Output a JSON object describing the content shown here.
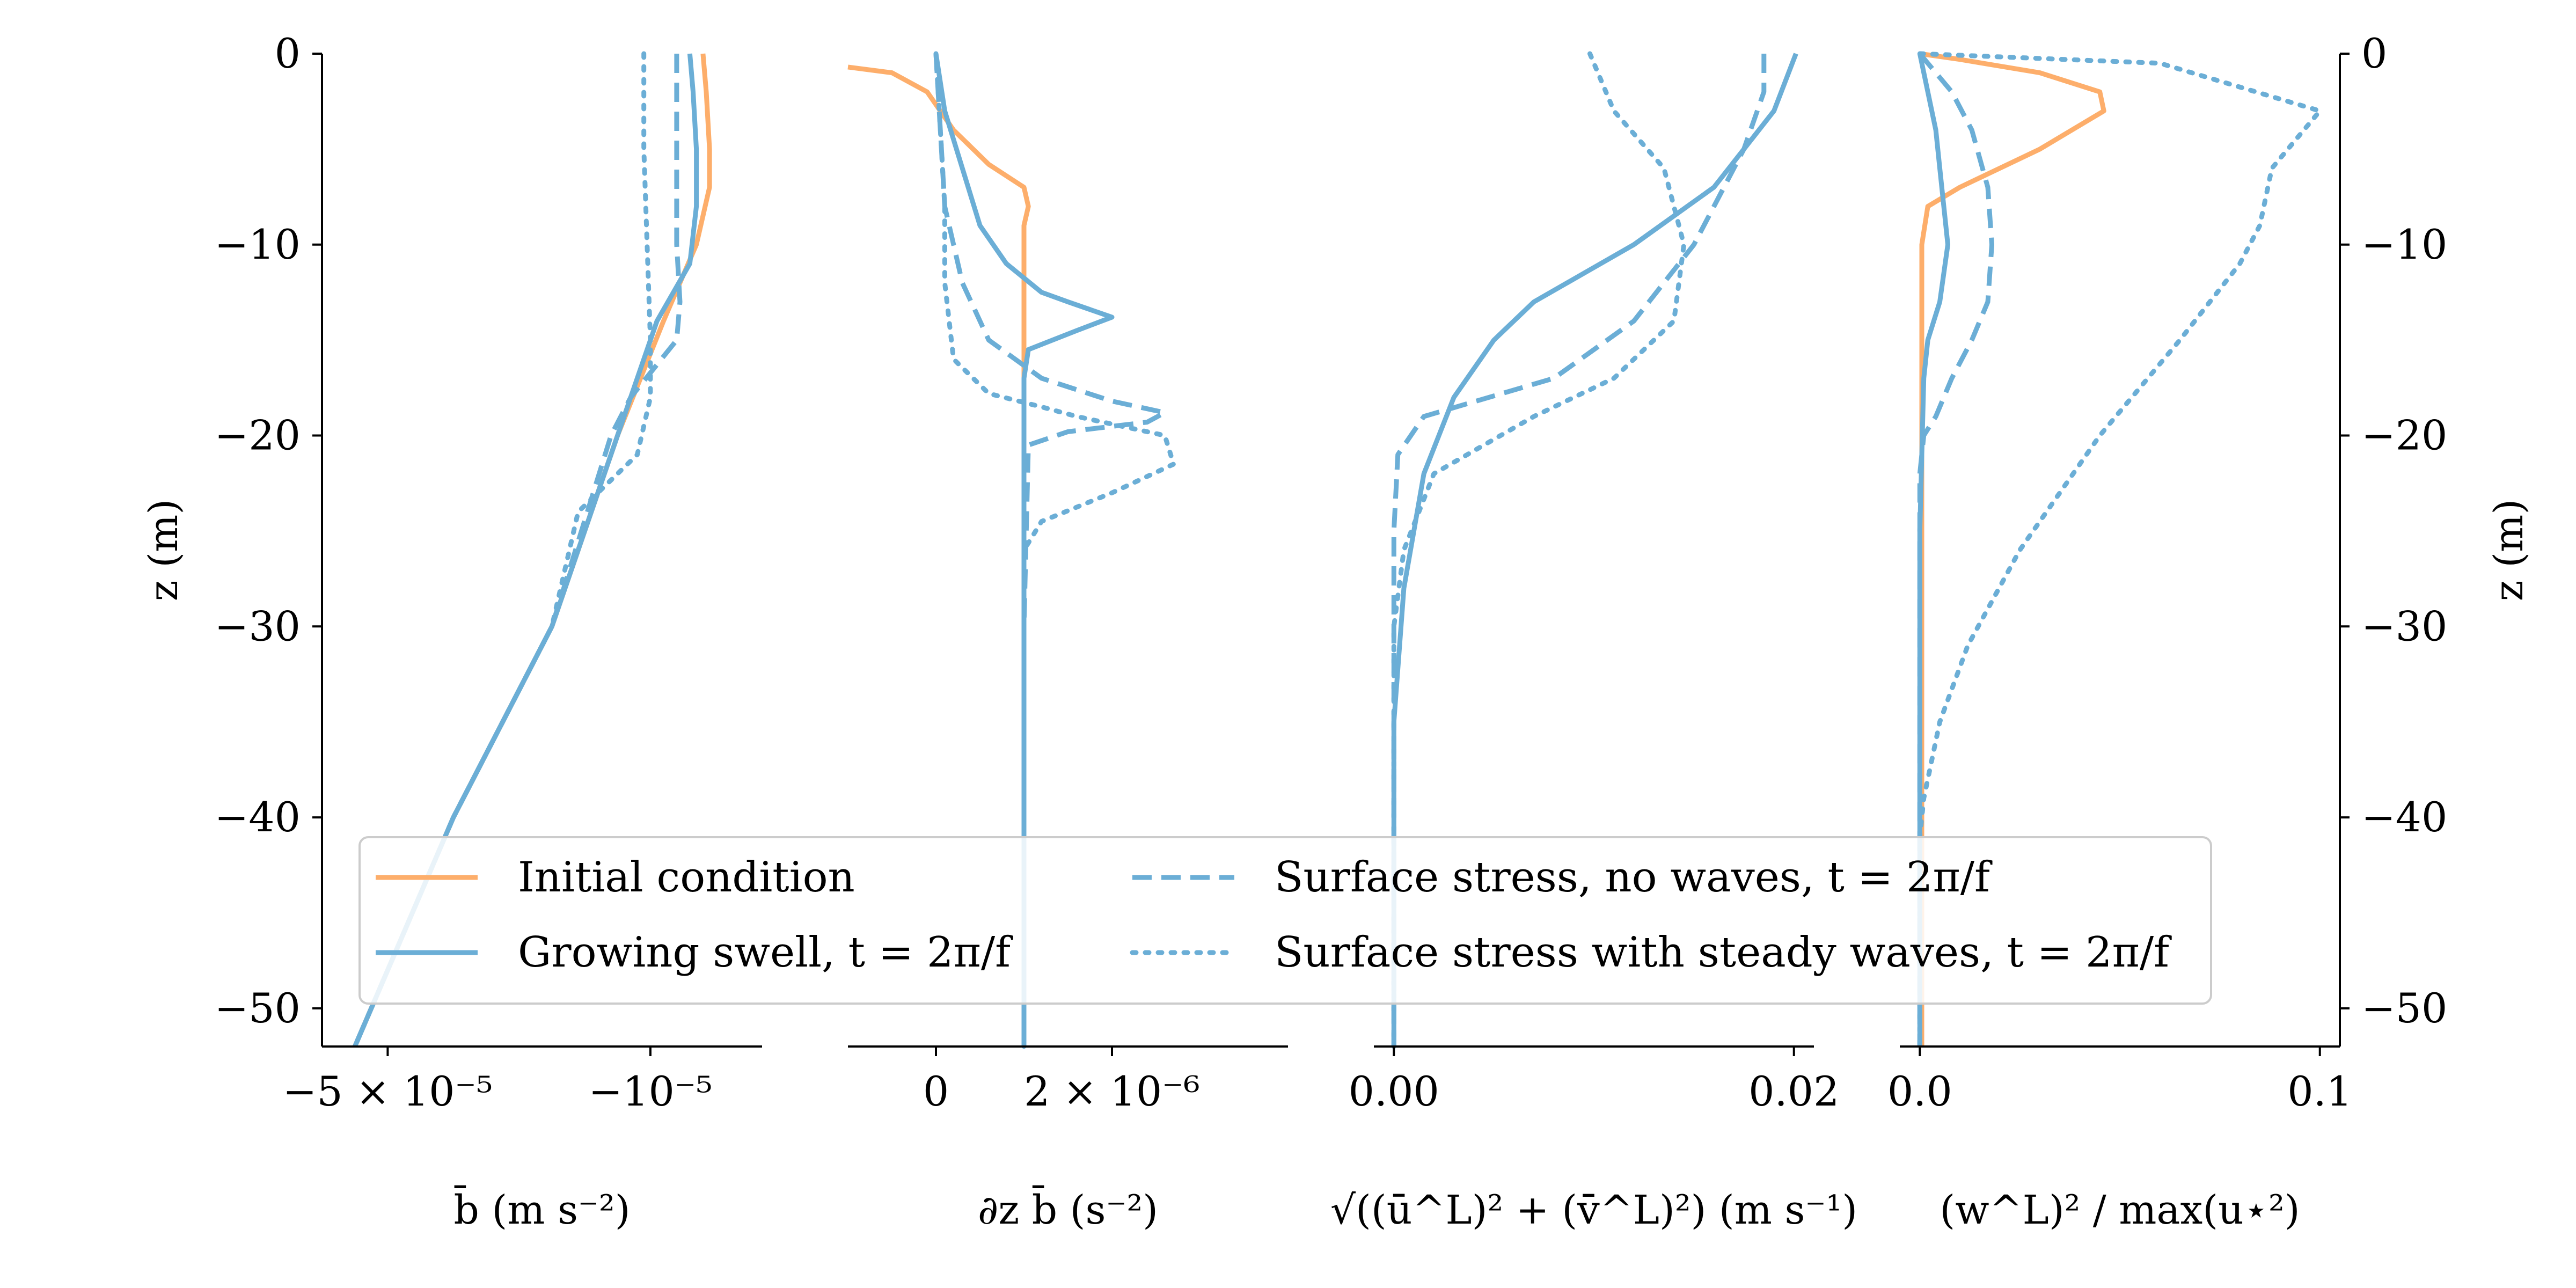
{
  "colors": {
    "orange": "#fdae6b",
    "blue": "#6baed6",
    "axis": "#000000"
  },
  "chart_data": [
    {
      "type": "line",
      "xlabel": "b̄  (m s⁻²)",
      "ylabel": "z (m)",
      "xlim": [
        -6e-05,
        7e-06
      ],
      "ylim": [
        -52,
        0
      ],
      "xticks": [
        -5e-05,
        -1e-05
      ],
      "xtick_labels": [
        "−5 × 10⁻⁵",
        "−10⁻⁵"
      ],
      "yticks": [
        0,
        -10,
        -20,
        -30,
        -40,
        -50
      ],
      "ytick_labels": [
        "0",
        "−10",
        "−20",
        "−30",
        "−40",
        "−50"
      ],
      "series": [
        {
          "name": "Initial condition",
          "style": "solid",
          "color": "#fdae6b",
          "x": [
            -2e-06,
            -1.5e-06,
            -1e-06,
            -1e-06,
            -3e-06,
            -8e-06,
            -1.5e-05,
            -2.5e-05,
            -4e-05,
            -5.5e-05
          ],
          "y": [
            0,
            -2,
            -5,
            -7,
            -10,
            -14,
            -20,
            -30,
            -40,
            -52
          ]
        },
        {
          "name": "Growing swell, t = 2π/f",
          "style": "solid",
          "color": "#6baed6",
          "x": [
            -4e-06,
            -3.5e-06,
            -3e-06,
            -3e-06,
            -4e-06,
            -9e-06,
            -1.5e-05,
            -2.5e-05,
            -4e-05,
            -5.5e-05
          ],
          "y": [
            0,
            -2,
            -5,
            -8,
            -11,
            -14,
            -20,
            -30,
            -40,
            -52
          ]
        },
        {
          "name": "Surface stress, no waves, t = 2π/f",
          "style": "dashed",
          "color": "#6baed6",
          "x": [
            -6e-06,
            -6e-06,
            -6e-06,
            -5.5e-06,
            -6e-06,
            -1.3e-05,
            -1.6e-05,
            -2.5e-05,
            -4e-05,
            -5.5e-05
          ],
          "y": [
            0,
            -5,
            -10,
            -13,
            -15,
            -18,
            -20,
            -30,
            -40,
            -52
          ]
        },
        {
          "name": "Surface stress with steady waves, t = 2π/f",
          "style": "dotted",
          "color": "#6baed6",
          "x": [
            -1.1e-05,
            -1.1e-05,
            -1.05e-05,
            -1e-05,
            -1e-05,
            -1.2e-05,
            -2.1e-05,
            -2.5e-05,
            -4e-05,
            -5.5e-05
          ],
          "y": [
            0,
            -5,
            -10,
            -15,
            -18,
            -21,
            -24,
            -30,
            -40,
            -52
          ]
        }
      ]
    },
    {
      "type": "line",
      "xlabel": "∂z b̄  (s⁻²)",
      "xlim": [
        -1e-06,
        4e-06
      ],
      "ylim": [
        -52,
        0
      ],
      "xticks": [
        0,
        2e-06
      ],
      "xtick_labels": [
        "0",
        "2 × 10⁻⁶"
      ],
      "series": [
        {
          "name": "Initial condition",
          "style": "solid",
          "color": "#fdae6b",
          "x": [
            -1e-06,
            -5e-07,
            -1e-07,
            2e-07,
            6e-07,
            1e-06,
            1.05e-06,
            1e-06,
            1e-06,
            1e-06,
            1e-06
          ],
          "y": [
            -0.7,
            -1,
            -2,
            -4,
            -5.8,
            -7,
            -8,
            -9,
            -14,
            -30,
            -52
          ]
        },
        {
          "name": "Growing swell, t = 2π/f",
          "style": "solid",
          "color": "#6baed6",
          "x": [
            0,
            1e-07,
            3e-07,
            5e-07,
            8e-07,
            1.2e-06,
            1.5e-06,
            2e-06,
            1.6e-06,
            1.05e-06,
            1e-06,
            1e-06,
            1e-06
          ],
          "y": [
            0,
            -3,
            -6,
            -9,
            -11,
            -12.5,
            -13,
            -13.8,
            -14.5,
            -15.5,
            -17,
            -30,
            -52
          ]
        },
        {
          "name": "Surface stress, no waves, t = 2π/f",
          "style": "dashed",
          "color": "#6baed6",
          "x": [
            0,
            5e-08,
            1e-07,
            3e-07,
            6e-07,
            1.2e-06,
            2e-06,
            2.6e-06,
            2.4e-06,
            1.5e-06,
            1.05e-06,
            1e-06,
            1e-06
          ],
          "y": [
            0,
            -4,
            -8,
            -12,
            -15,
            -17,
            -18.2,
            -18.8,
            -19.3,
            -19.8,
            -20.5,
            -30,
            -52
          ]
        },
        {
          "name": "Surface stress with steady waves, t = 2π/f",
          "style": "dotted",
          "color": "#6baed6",
          "x": [
            0,
            5e-08,
            1e-07,
            1e-07,
            2e-07,
            6e-07,
            1.2e-06,
            1.6e-06,
            2.6e-06,
            2.7e-06,
            2e-06,
            1.2e-06,
            1e-06,
            1e-06
          ],
          "y": [
            0,
            -4,
            -8,
            -12,
            -16,
            -17.8,
            -18.5,
            -19,
            -20,
            -21.5,
            -23,
            -24.5,
            -26,
            -52
          ]
        }
      ]
    },
    {
      "type": "line",
      "xlabel": "√((ū^L)² + (v̄^L)²)  (m s⁻¹)",
      "xlim": [
        -0.001,
        0.021
      ],
      "ylim": [
        -52,
        0
      ],
      "xticks": [
        0,
        0.02
      ],
      "xtick_labels": [
        "0.00",
        "0.02"
      ],
      "series": [
        {
          "name": "Growing swell, t = 2π/f",
          "style": "solid",
          "color": "#6baed6",
          "x": [
            0.0201,
            0.019,
            0.016,
            0.012,
            0.007,
            0.005,
            0.003,
            0.0015,
            0.0005,
            0.0,
            0.0
          ],
          "y": [
            0,
            -3,
            -7,
            -10,
            -13,
            -15,
            -18,
            -22,
            -28,
            -35,
            -52
          ]
        },
        {
          "name": "Surface stress, no waves, t = 2π/f",
          "style": "dashed",
          "color": "#6baed6",
          "x": [
            0.0185,
            0.0185,
            0.0175,
            0.015,
            0.012,
            0.008,
            0.0015,
            0.0002,
            0.0,
            0.0
          ],
          "y": [
            0,
            -2,
            -5,
            -10,
            -14,
            -17,
            -19,
            -21,
            -25,
            -52
          ]
        },
        {
          "name": "Surface stress with steady waves, t = 2π/f",
          "style": "dotted",
          "color": "#6baed6",
          "x": [
            0.0098,
            0.011,
            0.0135,
            0.0145,
            0.014,
            0.011,
            0.007,
            0.002,
            0.0005,
            0.0,
            0.0
          ],
          "y": [
            0,
            -3,
            -6,
            -10,
            -14,
            -17,
            -19,
            -22,
            -26,
            -30,
            -52
          ]
        }
      ]
    },
    {
      "type": "line",
      "xlabel": "(w^L)² / max(u⋆²)",
      "ylabel": "z (m)",
      "xlim": [
        -0.005,
        0.105
      ],
      "ylim": [
        -52,
        0
      ],
      "xticks": [
        0,
        0.1
      ],
      "xtick_labels": [
        "0.0",
        "0.1"
      ],
      "series": [
        {
          "name": "Initial condition",
          "style": "solid",
          "color": "#fdae6b",
          "x": [
            0.0,
            0.01,
            0.03,
            0.045,
            0.046,
            0.03,
            0.01,
            0.002,
            0.0005,
            0.0005,
            0.0005
          ],
          "y": [
            0,
            -0.3,
            -1,
            -2,
            -3,
            -5,
            -7,
            -8,
            -10,
            -20,
            -52
          ]
        },
        {
          "name": "Growing swell, t = 2π/f",
          "style": "solid",
          "color": "#6baed6",
          "x": [
            0.0,
            0.002,
            0.004,
            0.005,
            0.006,
            0.007,
            0.005,
            0.002,
            0.001,
            0.0,
            0.0
          ],
          "y": [
            0,
            -2,
            -4,
            -6,
            -8,
            -10,
            -13,
            -15,
            -17,
            -25,
            -52
          ]
        },
        {
          "name": "Surface stress, no waves, t = 2π/f",
          "style": "dashed",
          "color": "#6baed6",
          "x": [
            0.0,
            0.008,
            0.013,
            0.017,
            0.018,
            0.017,
            0.013,
            0.008,
            0.004,
            0.001,
            0.0,
            0.0
          ],
          "y": [
            0,
            -2,
            -4,
            -7,
            -10,
            -13,
            -15,
            -17,
            -19,
            -20,
            -22,
            -52
          ]
        },
        {
          "name": "Surface stress with steady waves, t = 2π/f",
          "style": "dotted",
          "color": "#6baed6",
          "x": [
            0.0,
            0.06,
            0.1,
            0.088,
            0.085,
            0.08,
            0.065,
            0.045,
            0.025,
            0.012,
            0.005,
            0.001,
            0.0,
            0.0
          ],
          "y": [
            0,
            -0.5,
            -3,
            -6,
            -9,
            -11,
            -15,
            -20,
            -26,
            -31,
            -35,
            -39,
            -41,
            -52
          ]
        }
      ]
    }
  ],
  "legend": {
    "placement": "bottom",
    "entries": [
      {
        "label": "Initial condition",
        "color": "#fdae6b",
        "style": "solid"
      },
      {
        "label": "Surface stress, no waves, t = 2π/f",
        "color": "#6baed6",
        "style": "dashed"
      },
      {
        "label": "Growing swell, t = 2π/f",
        "color": "#6baed6",
        "style": "solid"
      },
      {
        "label": "Surface stress with steady waves, t = 2π/f",
        "color": "#6baed6",
        "style": "dotted"
      }
    ]
  }
}
